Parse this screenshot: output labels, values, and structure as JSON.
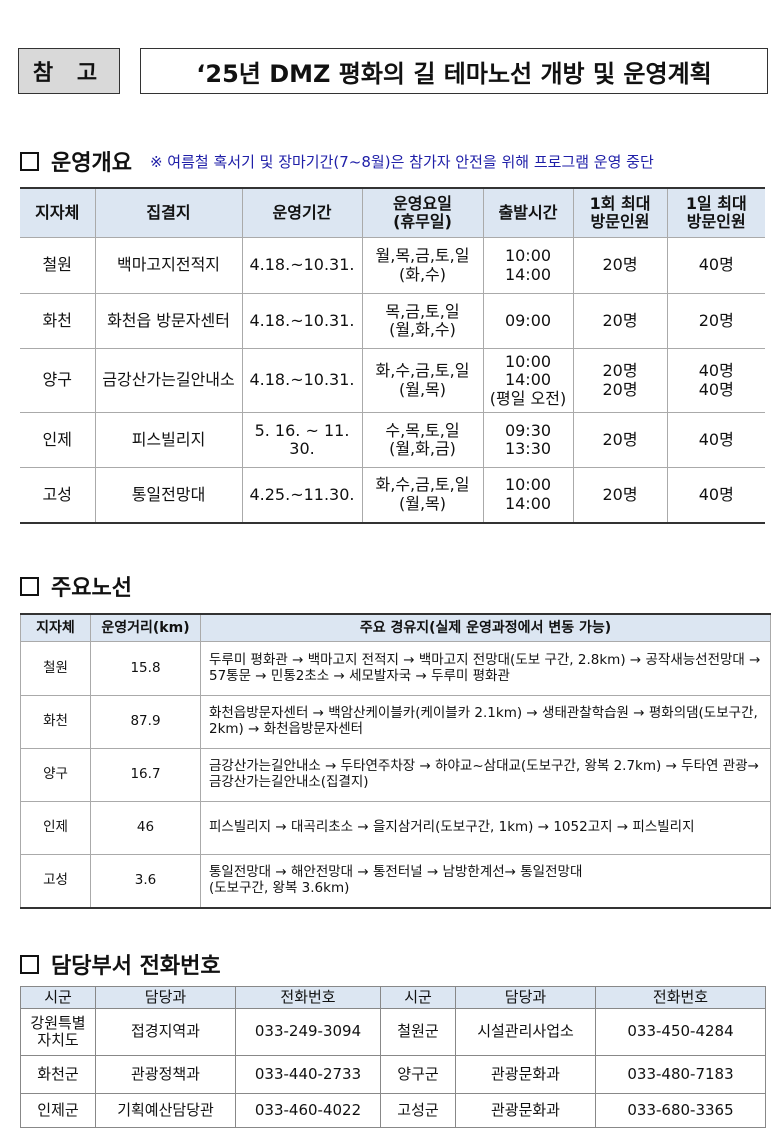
{
  "header": {
    "ref_label": "참 고",
    "title": "‘25년 DMZ 평화의 길 테마노선 개방 및 운영계획"
  },
  "section1": {
    "heading": "운영개요",
    "note": "※ 여름철 혹서기 및 장마기간(7~8월)은 참가자 안전을 위해 프로그램 운영 중단",
    "columns": [
      "지자체",
      "집결지",
      "운영기간",
      "운영요일\n(휴무일)",
      "출발시간",
      "1회 최대\n방문인원",
      "1일 최대\n방문인원"
    ],
    "rows": [
      [
        "철원",
        "백마고지전적지",
        "4.18.~10.31.",
        "월,목,금,토,일\n(화,수)",
        "10:00\n14:00",
        "20명",
        "40명"
      ],
      [
        "화천",
        "화천읍 방문자센터",
        "4.18.~10.31.",
        "목,금,토,일\n(월,화,수)",
        "09:00",
        "20명",
        "20명"
      ],
      [
        "양구",
        "금강산가는길안내소",
        "4.18.~10.31.",
        "화,수,금,토,일\n(월,목)",
        "10:00\n14:00\n(평일 오전)",
        "20명\n20명",
        "40명\n40명"
      ],
      [
        "인제",
        "피스빌리지",
        "5. 16. ~ 11. 30.",
        "수,목,토,일\n(월,화,금)",
        "09:30\n13:30",
        "20명",
        "40명"
      ],
      [
        "고성",
        "통일전망대",
        "4.25.~11.30.",
        "화,수,금,토,일\n(월,목)",
        "10:00\n14:00",
        "20명",
        "40명"
      ]
    ]
  },
  "section2": {
    "heading": "주요노선",
    "columns": [
      "지자체",
      "운영거리(km)",
      "주요 경유지(실제 운영과정에서 변동 가능)"
    ],
    "rows": [
      [
        "철원",
        "15.8",
        "두루미 평화관 → 백마고지 전적지 → 백마고지 전망대(도보 구간, 2.8km) → 공작새능선전망대 → 57통문 → 민통2초소 → 세모발자국 → 두루미 평화관"
      ],
      [
        "화천",
        "87.9",
        "화천읍방문자센터 → 백암산케이블카(케이블카 2.1km) → 생태관찰학습원 → 평화의댐(도보구간, 2km) → 화천읍방문자센터"
      ],
      [
        "양구",
        "16.7",
        "금강산가는길안내소 → 두타연주차장 → 하야교~삼대교(도보구간, 왕복 2.7km) → 두타연 관광→ 금강산가는길안내소(집결지)"
      ],
      [
        "인제",
        "46",
        "피스빌리지 → 대곡리초소 → 을지삼거리(도보구간, 1km) → 1052고지 → 피스빌리지"
      ],
      [
        "고성",
        "3.6",
        "통일전망대 → 해안전망대 → 통전터널 → 남방한계선→ 통일전망대\n(도보구간, 왕복 3.6km)"
      ]
    ]
  },
  "section3": {
    "heading": "담당부서 전화번호",
    "columns": [
      "시군",
      "담당과",
      "전화번호",
      "시군",
      "담당과",
      "전화번호"
    ],
    "rows": [
      [
        "강원특별\n자치도",
        "접경지역과",
        "033-249-3094",
        "철원군",
        "시설관리사업소",
        "033-450-4284"
      ],
      [
        "화천군",
        "관광정책과",
        "033-440-2733",
        "양구군",
        "관광문화과",
        "033-480-7183"
      ],
      [
        "인제군",
        "기획예산담당관",
        "033-460-4022",
        "고성군",
        "관광문화과",
        "033-680-3365"
      ]
    ]
  }
}
